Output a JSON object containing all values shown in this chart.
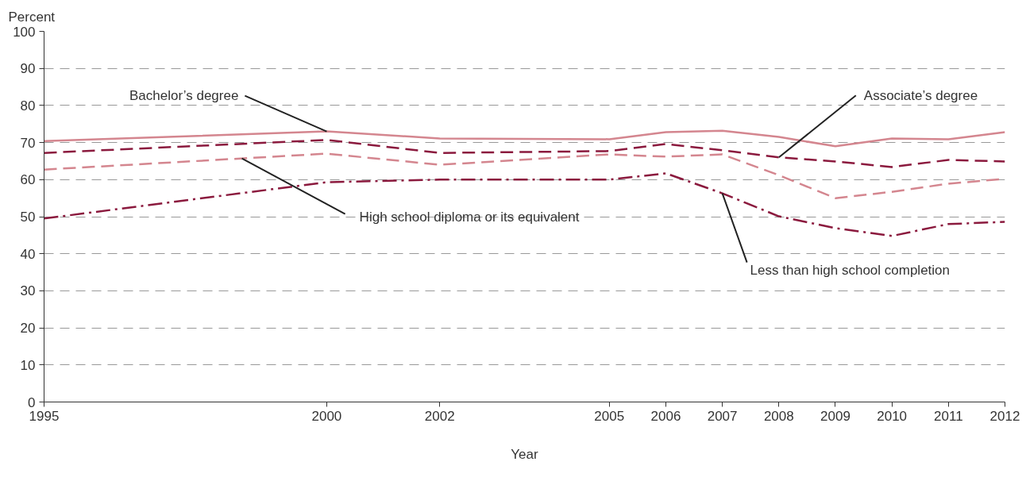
{
  "chart_data": {
    "type": "line",
    "xlabel": "Year",
    "ylabel": "Percent",
    "x": [
      1995,
      2000,
      2002,
      2005,
      2006,
      2007,
      2008,
      2009,
      2010,
      2011,
      2012
    ],
    "series": [
      {
        "name": "Bachelor’s degree",
        "color": "#d4868f",
        "line_style": "solid",
        "values": [
          70.4,
          73.0,
          71.1,
          70.9,
          72.8,
          73.2,
          71.5,
          69.0,
          71.1,
          70.9,
          72.8
        ]
      },
      {
        "name": "Associate’s degree",
        "color": "#8b1a3e",
        "line_style": "dashed",
        "values": [
          67.2,
          70.7,
          67.2,
          67.7,
          69.6,
          67.9,
          66.0,
          64.9,
          63.4,
          65.3,
          64.9
        ]
      },
      {
        "name": "High school diploma or its equivalent",
        "color": "#d4868f",
        "line_style": "dashed",
        "values": [
          62.7,
          67.0,
          64.0,
          66.8,
          66.2,
          66.8,
          61.2,
          55.0,
          56.7,
          58.9,
          60.2
        ]
      },
      {
        "name": "Less than high school completion",
        "color": "#8b1a3e",
        "line_style": "dashdot",
        "values": [
          49.5,
          59.3,
          60.0,
          60.0,
          61.7,
          56.3,
          50.1,
          46.9,
          44.8,
          48.0,
          48.6
        ]
      }
    ],
    "xlim": [
      1995,
      2012
    ],
    "xticks": [
      1995,
      2000,
      2002,
      2005,
      2006,
      2007,
      2008,
      2009,
      2010,
      2011,
      2012
    ],
    "ylim": [
      0,
      100
    ],
    "yticks": [
      0,
      10,
      20,
      30,
      40,
      50,
      60,
      70,
      80,
      90,
      100
    ],
    "grid": "y",
    "legend": false,
    "marker": "none"
  }
}
